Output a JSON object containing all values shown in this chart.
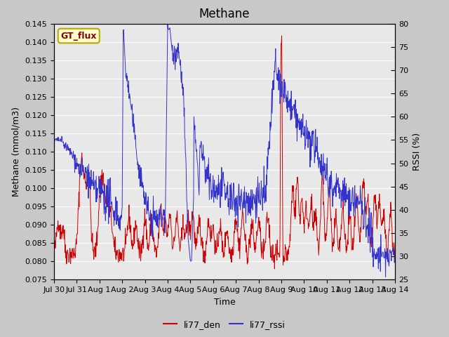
{
  "title": "Methane",
  "xlabel": "Time",
  "ylabel_left": "Methane (mmol/m3)",
  "ylabel_right": "RSSI (%)",
  "ylim_left": [
    0.075,
    0.145
  ],
  "ylim_right": [
    25,
    80
  ],
  "yticks_left": [
    0.075,
    0.08,
    0.085,
    0.09,
    0.095,
    0.1,
    0.105,
    0.11,
    0.115,
    0.12,
    0.125,
    0.13,
    0.135,
    0.14,
    0.145
  ],
  "yticks_right": [
    25,
    30,
    35,
    40,
    45,
    50,
    55,
    60,
    65,
    70,
    75,
    80
  ],
  "xtick_labels": [
    "Jul 30",
    "Jul 31",
    "Aug 1",
    "Aug 2",
    "Aug 3",
    "Aug 4",
    "Aug 5",
    "Aug 6",
    "Aug 7",
    "Aug 8",
    "Aug 9",
    "Aug 10",
    "Aug 11",
    "Aug 12",
    "Aug 13",
    "Aug 14"
  ],
  "legend_labels": [
    "li77_den",
    "li77_rssi"
  ],
  "line_color_red": "#cc0000",
  "line_color_blue": "#3333cc",
  "fig_bg_color": "#c8c8c8",
  "plot_bg_color": "#e8e8e8",
  "grid_color": "#ffffff",
  "annotation_text": "GT_flux",
  "annotation_bg": "#ffffcc",
  "annotation_border": "#bbaa00",
  "annotation_text_color": "#880000",
  "title_fontsize": 12,
  "axis_label_fontsize": 9,
  "tick_fontsize": 8
}
